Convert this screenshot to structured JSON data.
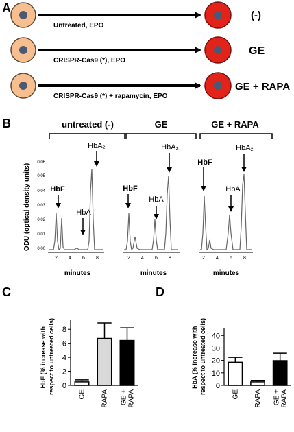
{
  "panel_a": {
    "letter": "A",
    "rows": [
      {
        "arrow_label": "Untreated, EPO",
        "outcome_label": "(-)"
      },
      {
        "arrow_label": "CRISPR-Cas9 (*), EPO",
        "outcome_label": "GE"
      },
      {
        "arrow_label": "CRISPR-Cas9 (*) + rapamycin, EPO",
        "outcome_label": "GE + RAPA"
      }
    ],
    "colors": {
      "progenitor_fill": "#f7bf8f",
      "erythroid_fill": "#e2231a",
      "nucleus_fill": "#4a5a75"
    }
  },
  "panel_b": {
    "letter": "B",
    "y_axis_label": "ODU (optical density units)",
    "y_ticks": [
      "0.06",
      "0.05",
      "0.04",
      "0.03",
      "0.02",
      "0.01",
      "0.00"
    ],
    "x_label": "minutes",
    "x_ticks": [
      "2",
      "4",
      "6",
      "8"
    ],
    "panels": [
      {
        "title": "untreated (-)",
        "peak_labels": {
          "hbf": "HbF",
          "hba": "HbA",
          "hba2": "HbA₂"
        }
      },
      {
        "title": "GE",
        "peak_labels": {
          "hbf": "HbF",
          "hba": "HbA",
          "hba2": "HbA₂"
        }
      },
      {
        "title": "GE + RAPA",
        "peak_labels": {
          "hbf": "HbF",
          "hba": "HbA",
          "hba2": "HbA₂"
        }
      }
    ]
  },
  "panel_c": {
    "letter": "C"
  },
  "panel_d": {
    "letter": "D"
  },
  "chart_data": [
    {
      "type": "bar",
      "categories": [
        "GE",
        "RAPA",
        "GE + RAPA"
      ],
      "values": [
        0.5,
        6.7,
        6.4
      ],
      "errors": [
        0.3,
        2.2,
        1.8
      ],
      "bar_colors": [
        "#ffffff",
        "#d9d9d9",
        "#000000"
      ],
      "ylabel": "HbF (% increase with respect to untreated cells)",
      "ylim": [
        0,
        9
      ],
      "yticks": [
        0,
        2,
        4,
        6,
        8
      ]
    },
    {
      "type": "bar",
      "categories": [
        "GE",
        "RAPA",
        "GE + RAPA"
      ],
      "values": [
        18.5,
        2.8,
        19.8
      ],
      "errors": [
        4.0,
        1.2,
        6.0
      ],
      "bar_colors": [
        "#ffffff",
        "#ffffff",
        "#000000"
      ],
      "ylabel": "HbA (% increase with respect to untreated cells)",
      "ylim": [
        0,
        44
      ],
      "yticks": [
        0,
        10,
        20,
        30,
        40
      ]
    }
  ]
}
